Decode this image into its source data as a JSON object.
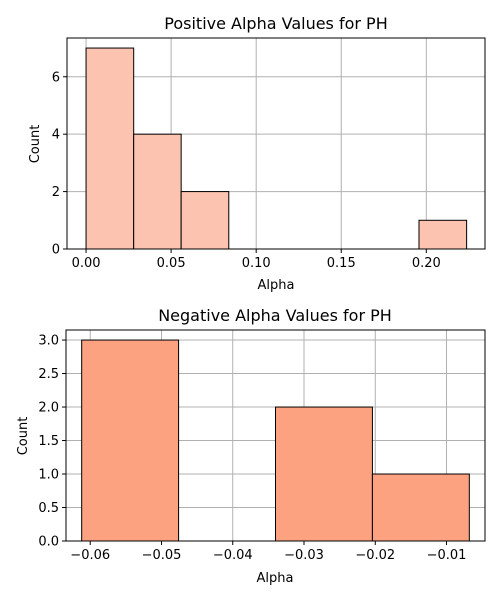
{
  "chart_data": [
    {
      "type": "bar",
      "title": "Positive Alpha Values for PH",
      "xlabel": "Alpha",
      "ylabel": "Count",
      "bar_color": "#fcc4b0",
      "grid": true,
      "xlim": [
        -0.0112,
        0.2345
      ],
      "ylim": [
        0,
        7.35
      ],
      "xticks": [
        0.0,
        0.05,
        0.1,
        0.15,
        0.2
      ],
      "xtick_labels": [
        "0.00",
        "0.05",
        "0.10",
        "0.15",
        "0.20"
      ],
      "yticks": [
        0,
        2,
        4,
        6
      ],
      "ytick_labels": [
        "0",
        "2",
        "4",
        "6"
      ],
      "bins": [
        {
          "x0": 0.0,
          "x1": 0.028,
          "count": 7
        },
        {
          "x0": 0.028,
          "x1": 0.0559,
          "count": 4
        },
        {
          "x0": 0.0559,
          "x1": 0.0839,
          "count": 2
        },
        {
          "x0": 0.0839,
          "x1": 0.1118,
          "count": 0
        },
        {
          "x0": 0.1118,
          "x1": 0.1398,
          "count": 0
        },
        {
          "x0": 0.1398,
          "x1": 0.1677,
          "count": 0
        },
        {
          "x0": 0.1677,
          "x1": 0.1957,
          "count": 0
        },
        {
          "x0": 0.1957,
          "x1": 0.2237,
          "count": 1
        }
      ]
    },
    {
      "type": "bar",
      "title": "Negative Alpha Values for PH",
      "xlabel": "Alpha",
      "ylabel": "Count",
      "bar_color": "#fca280",
      "grid": true,
      "xlim": [
        -0.0634,
        -0.0046
      ],
      "ylim": [
        0,
        3.15
      ],
      "xticks": [
        -0.06,
        -0.05,
        -0.04,
        -0.03,
        -0.02,
        -0.01
      ],
      "xtick_labels": [
        "−0.06",
        "−0.05",
        "−0.04",
        "−0.03",
        "−0.02",
        "−0.01"
      ],
      "yticks": [
        0.0,
        0.5,
        1.0,
        1.5,
        2.0,
        2.5,
        3.0
      ],
      "ytick_labels": [
        "0.0",
        "0.5",
        "1.0",
        "1.5",
        "2.0",
        "2.5",
        "3.0"
      ],
      "bins": [
        {
          "x0": -0.0612,
          "x1": -0.0476,
          "count": 3
        },
        {
          "x0": -0.0476,
          "x1": -0.034,
          "count": 0
        },
        {
          "x0": -0.034,
          "x1": -0.0204,
          "count": 2
        },
        {
          "x0": -0.0204,
          "x1": -0.0068,
          "count": 1
        }
      ]
    }
  ]
}
